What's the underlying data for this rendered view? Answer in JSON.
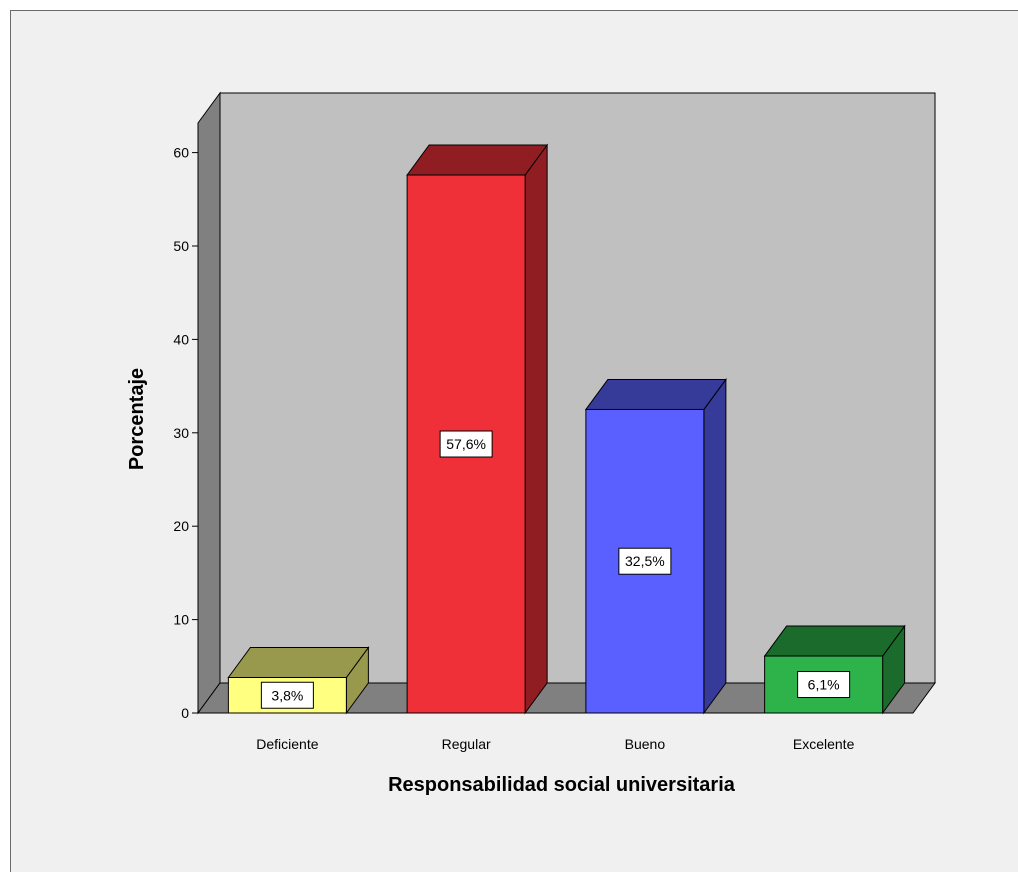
{
  "chart_data": {
    "type": "bar",
    "style": "3d",
    "categories": [
      "Deficiente",
      "Regular",
      "Bueno",
      "Excelente"
    ],
    "values": [
      3.8,
      57.6,
      32.5,
      6.1
    ],
    "data_labels": [
      "3,8%",
      "57,6%",
      "32,5%",
      "6,1%"
    ],
    "colors": [
      "#ffff80",
      "#ef3038",
      "#5a60ff",
      "#2db34a"
    ],
    "xlabel": "Responsabilidad social universitaria",
    "ylabel": "Porcentaje",
    "ylim": [
      0,
      60
    ],
    "yticks": [
      0,
      10,
      20,
      30,
      40,
      50,
      60
    ],
    "grid": false,
    "legend": "none",
    "background_color": "#f0f0f0",
    "plot_back_color": "#c0c0c0",
    "side_wall_color": "#808080"
  }
}
